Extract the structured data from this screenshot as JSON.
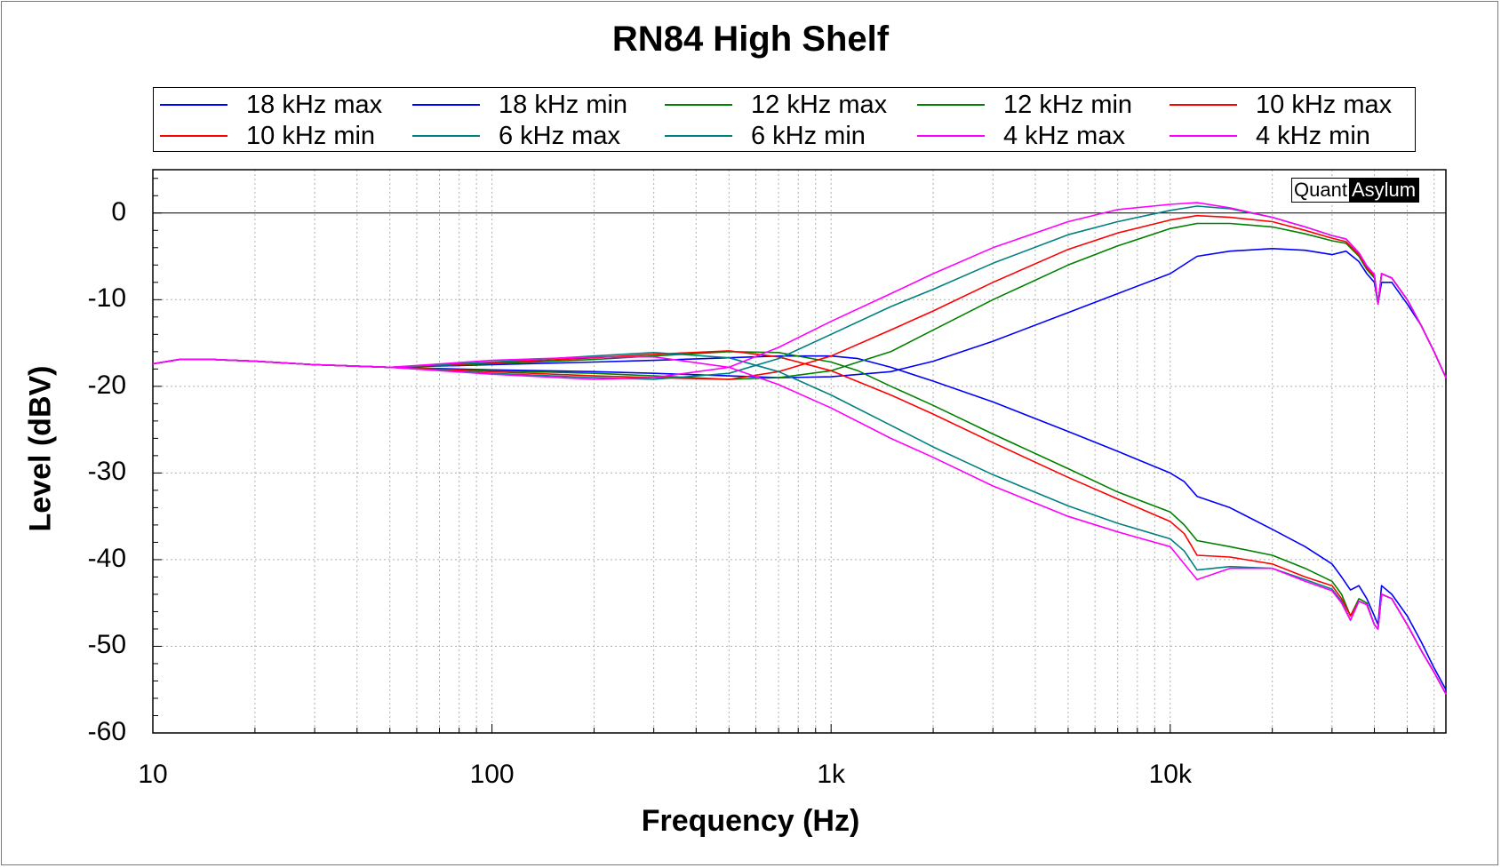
{
  "chart_data": {
    "type": "line",
    "title": "RN84 High Shelf",
    "xlabel": "Frequency (Hz)",
    "ylabel": "Level (dBV)",
    "xscale": "log",
    "xlim": [
      10,
      65000
    ],
    "ylim": [
      -60,
      5
    ],
    "yticks": [
      0,
      -10,
      -20,
      -30,
      -40,
      -50,
      -60
    ],
    "ytick_labels": [
      "0",
      "-10",
      "-20",
      "-30",
      "-40",
      "-50",
      "-60"
    ],
    "xticks": [
      10,
      100,
      1000,
      10000
    ],
    "xtick_labels": [
      "10",
      "100",
      "1k",
      "10k"
    ],
    "grid": true,
    "legend_position": "top",
    "watermark": {
      "left": "Quant",
      "right": "Asylum"
    },
    "series": [
      {
        "name": "18 kHz max",
        "color": "#0000ff",
        "x": [
          10,
          12,
          15,
          20,
          30,
          50,
          100,
          200,
          300,
          500,
          700,
          1000,
          1500,
          2000,
          3000,
          5000,
          7000,
          10000,
          12000,
          15000,
          20000,
          25000,
          30000,
          33000,
          36000,
          38000,
          40000,
          41000,
          42000,
          45000,
          50000,
          55000,
          60000,
          65000
        ],
        "y": [
          -17.4,
          -16.9,
          -16.9,
          -17.1,
          -17.5,
          -17.8,
          -18.1,
          -18.3,
          -18.5,
          -18.8,
          -19.0,
          -18.9,
          -18.3,
          -17.1,
          -14.8,
          -11.5,
          -9.3,
          -7.0,
          -5.0,
          -4.4,
          -4.1,
          -4.3,
          -4.8,
          -4.4,
          -5.6,
          -7.0,
          -8.0,
          -10.5,
          -8.0,
          -8.0,
          -10.5,
          -13.0,
          -16.0,
          -19.0
        ]
      },
      {
        "name": "18 kHz min",
        "color": "#0000ff",
        "x": [
          10,
          12,
          15,
          20,
          30,
          50,
          100,
          200,
          300,
          500,
          700,
          1000,
          1200,
          1500,
          2000,
          3000,
          5000,
          7000,
          10000,
          11000,
          12000,
          15000,
          20000,
          25000,
          30000,
          32000,
          34000,
          36000,
          38000,
          40000,
          41000,
          42000,
          45000,
          50000,
          55000,
          60000,
          65000
        ],
        "y": [
          -17.4,
          -16.9,
          -16.9,
          -17.1,
          -17.5,
          -17.8,
          -17.5,
          -17.2,
          -17.0,
          -16.7,
          -16.5,
          -16.5,
          -16.8,
          -17.8,
          -19.4,
          -21.8,
          -25.2,
          -27.5,
          -30.0,
          -31.0,
          -32.7,
          -34.0,
          -36.5,
          -38.5,
          -40.5,
          -42.0,
          -43.5,
          -43.0,
          -44.5,
          -46.5,
          -47.5,
          -43.0,
          -44.0,
          -46.5,
          -49.5,
          -52.5,
          -55.0
        ]
      },
      {
        "name": "12 kHz max",
        "color": "#008000",
        "x": [
          10,
          12,
          15,
          20,
          30,
          50,
          100,
          200,
          300,
          500,
          700,
          1000,
          1500,
          2000,
          3000,
          5000,
          7000,
          10000,
          12000,
          15000,
          20000,
          25000,
          30000,
          33000,
          36000,
          38000,
          40000,
          41000,
          42000,
          45000,
          50000,
          55000,
          60000,
          65000
        ],
        "y": [
          -17.4,
          -16.9,
          -16.9,
          -17.1,
          -17.5,
          -17.8,
          -18.2,
          -18.5,
          -18.8,
          -19.2,
          -19.0,
          -18.2,
          -16.0,
          -13.5,
          -10.0,
          -6.0,
          -3.8,
          -1.8,
          -1.2,
          -1.2,
          -1.6,
          -2.4,
          -3.2,
          -3.5,
          -5.0,
          -6.5,
          -7.5,
          -10.5,
          -7.0,
          -7.5,
          -10.0,
          -13.0,
          -16.0,
          -19.0
        ]
      },
      {
        "name": "12 kHz min",
        "color": "#008000",
        "x": [
          10,
          12,
          15,
          20,
          30,
          50,
          100,
          200,
          300,
          500,
          700,
          1000,
          1200,
          1500,
          2000,
          3000,
          5000,
          7000,
          10000,
          11000,
          12000,
          15000,
          20000,
          25000,
          30000,
          32000,
          34000,
          36000,
          38000,
          40000,
          41000,
          42000,
          45000,
          50000,
          55000,
          60000,
          65000
        ],
        "y": [
          -17.4,
          -16.9,
          -16.9,
          -17.1,
          -17.5,
          -17.8,
          -17.4,
          -16.9,
          -16.5,
          -16.0,
          -16.1,
          -17.2,
          -18.2,
          -20.0,
          -22.2,
          -25.5,
          -29.5,
          -32.2,
          -34.5,
          -36.0,
          -37.8,
          -38.5,
          -39.5,
          -41.0,
          -42.5,
          -44.0,
          -46.5,
          -44.5,
          -45.0,
          -47.5,
          -48.0,
          -44.0,
          -44.5,
          -47.5,
          -50.5,
          -53.0,
          -55.5
        ]
      },
      {
        "name": "10 kHz max",
        "color": "#ff0000",
        "x": [
          10,
          12,
          15,
          20,
          30,
          50,
          100,
          200,
          300,
          500,
          700,
          1000,
          1500,
          2000,
          3000,
          5000,
          7000,
          10000,
          12000,
          15000,
          20000,
          25000,
          30000,
          33000,
          36000,
          38000,
          40000,
          41000,
          42000,
          45000,
          50000,
          55000,
          60000,
          65000
        ],
        "y": [
          -17.4,
          -16.9,
          -16.9,
          -17.1,
          -17.5,
          -17.8,
          -18.3,
          -18.8,
          -19.0,
          -19.2,
          -18.3,
          -16.5,
          -13.5,
          -11.3,
          -8.0,
          -4.2,
          -2.3,
          -0.8,
          -0.3,
          -0.5,
          -1.0,
          -2.0,
          -2.9,
          -3.3,
          -4.8,
          -6.3,
          -7.3,
          -10.5,
          -7.0,
          -7.5,
          -10.0,
          -13.0,
          -16.0,
          -19.0
        ]
      },
      {
        "name": "10 kHz min",
        "color": "#ff0000",
        "x": [
          10,
          12,
          15,
          20,
          30,
          50,
          100,
          200,
          300,
          500,
          700,
          1000,
          1500,
          2000,
          3000,
          5000,
          7000,
          10000,
          11000,
          12000,
          15000,
          20000,
          25000,
          30000,
          32000,
          34000,
          36000,
          38000,
          40000,
          41000,
          42000,
          45000,
          50000,
          55000,
          60000,
          65000
        ],
        "y": [
          -17.4,
          -16.9,
          -16.9,
          -17.1,
          -17.5,
          -17.8,
          -17.3,
          -16.7,
          -16.3,
          -15.9,
          -16.6,
          -18.2,
          -21.0,
          -23.2,
          -26.5,
          -30.5,
          -33.0,
          -35.6,
          -37.0,
          -39.5,
          -39.7,
          -40.5,
          -42.0,
          -43.0,
          -44.5,
          -46.5,
          -44.8,
          -45.2,
          -47.5,
          -48.0,
          -44.0,
          -44.5,
          -47.5,
          -50.5,
          -53.0,
          -55.5
        ]
      },
      {
        "name": "6 kHz max",
        "color": "#008080",
        "x": [
          10,
          12,
          15,
          20,
          30,
          50,
          100,
          200,
          300,
          500,
          700,
          1000,
          1500,
          2000,
          3000,
          5000,
          7000,
          10000,
          12000,
          15000,
          20000,
          25000,
          30000,
          33000,
          36000,
          38000,
          40000,
          41000,
          42000,
          45000,
          50000,
          55000,
          60000,
          65000
        ],
        "y": [
          -17.4,
          -16.9,
          -16.9,
          -17.1,
          -17.5,
          -17.8,
          -18.5,
          -19.0,
          -19.2,
          -18.5,
          -16.8,
          -14.0,
          -10.8,
          -8.8,
          -5.8,
          -2.5,
          -1.0,
          0.3,
          0.8,
          0.5,
          -0.5,
          -1.6,
          -2.6,
          -3.0,
          -4.6,
          -6.1,
          -7.1,
          -10.5,
          -7.0,
          -7.5,
          -10.0,
          -13.0,
          -16.0,
          -19.0
        ]
      },
      {
        "name": "6 kHz min",
        "color": "#008080",
        "x": [
          10,
          12,
          15,
          20,
          30,
          50,
          100,
          200,
          300,
          500,
          700,
          1000,
          1500,
          2000,
          3000,
          5000,
          7000,
          10000,
          11000,
          12000,
          15000,
          20000,
          25000,
          30000,
          32000,
          34000,
          36000,
          38000,
          40000,
          41000,
          42000,
          45000,
          50000,
          55000,
          60000,
          65000
        ],
        "y": [
          -17.4,
          -16.9,
          -16.9,
          -17.1,
          -17.5,
          -17.8,
          -17.2,
          -16.5,
          -16.1,
          -16.7,
          -18.3,
          -21.0,
          -24.5,
          -27.0,
          -30.2,
          -33.8,
          -35.8,
          -37.6,
          -39.0,
          -41.2,
          -40.8,
          -41.0,
          -42.3,
          -43.4,
          -44.8,
          -47.0,
          -44.8,
          -45.2,
          -47.5,
          -48.0,
          -44.0,
          -44.5,
          -47.5,
          -50.5,
          -53.0,
          -55.5
        ]
      },
      {
        "name": "4 kHz max",
        "color": "#ff00ff",
        "x": [
          10,
          12,
          15,
          20,
          30,
          50,
          100,
          200,
          300,
          500,
          700,
          1000,
          1500,
          2000,
          3000,
          5000,
          7000,
          10000,
          12000,
          15000,
          20000,
          25000,
          30000,
          33000,
          36000,
          38000,
          40000,
          41000,
          42000,
          45000,
          50000,
          55000,
          60000,
          65000
        ],
        "y": [
          -17.4,
          -16.9,
          -16.9,
          -17.1,
          -17.5,
          -17.8,
          -18.6,
          -19.2,
          -19.0,
          -17.8,
          -15.5,
          -12.5,
          -9.3,
          -7.0,
          -4.0,
          -1.0,
          0.4,
          1.0,
          1.2,
          0.6,
          -0.5,
          -1.6,
          -2.6,
          -3.0,
          -4.6,
          -6.1,
          -7.1,
          -10.5,
          -7.0,
          -7.5,
          -10.0,
          -13.0,
          -16.0,
          -19.0
        ]
      },
      {
        "name": "4 kHz min",
        "color": "#ff00ff",
        "x": [
          10,
          12,
          15,
          20,
          30,
          50,
          100,
          200,
          300,
          500,
          700,
          1000,
          1500,
          2000,
          3000,
          5000,
          7000,
          10000,
          11000,
          12000,
          15000,
          20000,
          25000,
          30000,
          32000,
          34000,
          36000,
          38000,
          40000,
          41000,
          42000,
          45000,
          50000,
          55000,
          60000,
          65000
        ],
        "y": [
          -17.4,
          -16.9,
          -16.9,
          -17.1,
          -17.5,
          -17.8,
          -17.0,
          -16.6,
          -16.6,
          -17.8,
          -19.8,
          -22.5,
          -26.0,
          -28.2,
          -31.5,
          -35.0,
          -36.8,
          -38.5,
          -40.5,
          -42.3,
          -41.0,
          -41.0,
          -42.5,
          -43.6,
          -45.0,
          -47.0,
          -44.8,
          -45.2,
          -47.5,
          -48.0,
          -44.0,
          -44.5,
          -47.5,
          -50.5,
          -53.0,
          -55.5
        ]
      }
    ]
  }
}
